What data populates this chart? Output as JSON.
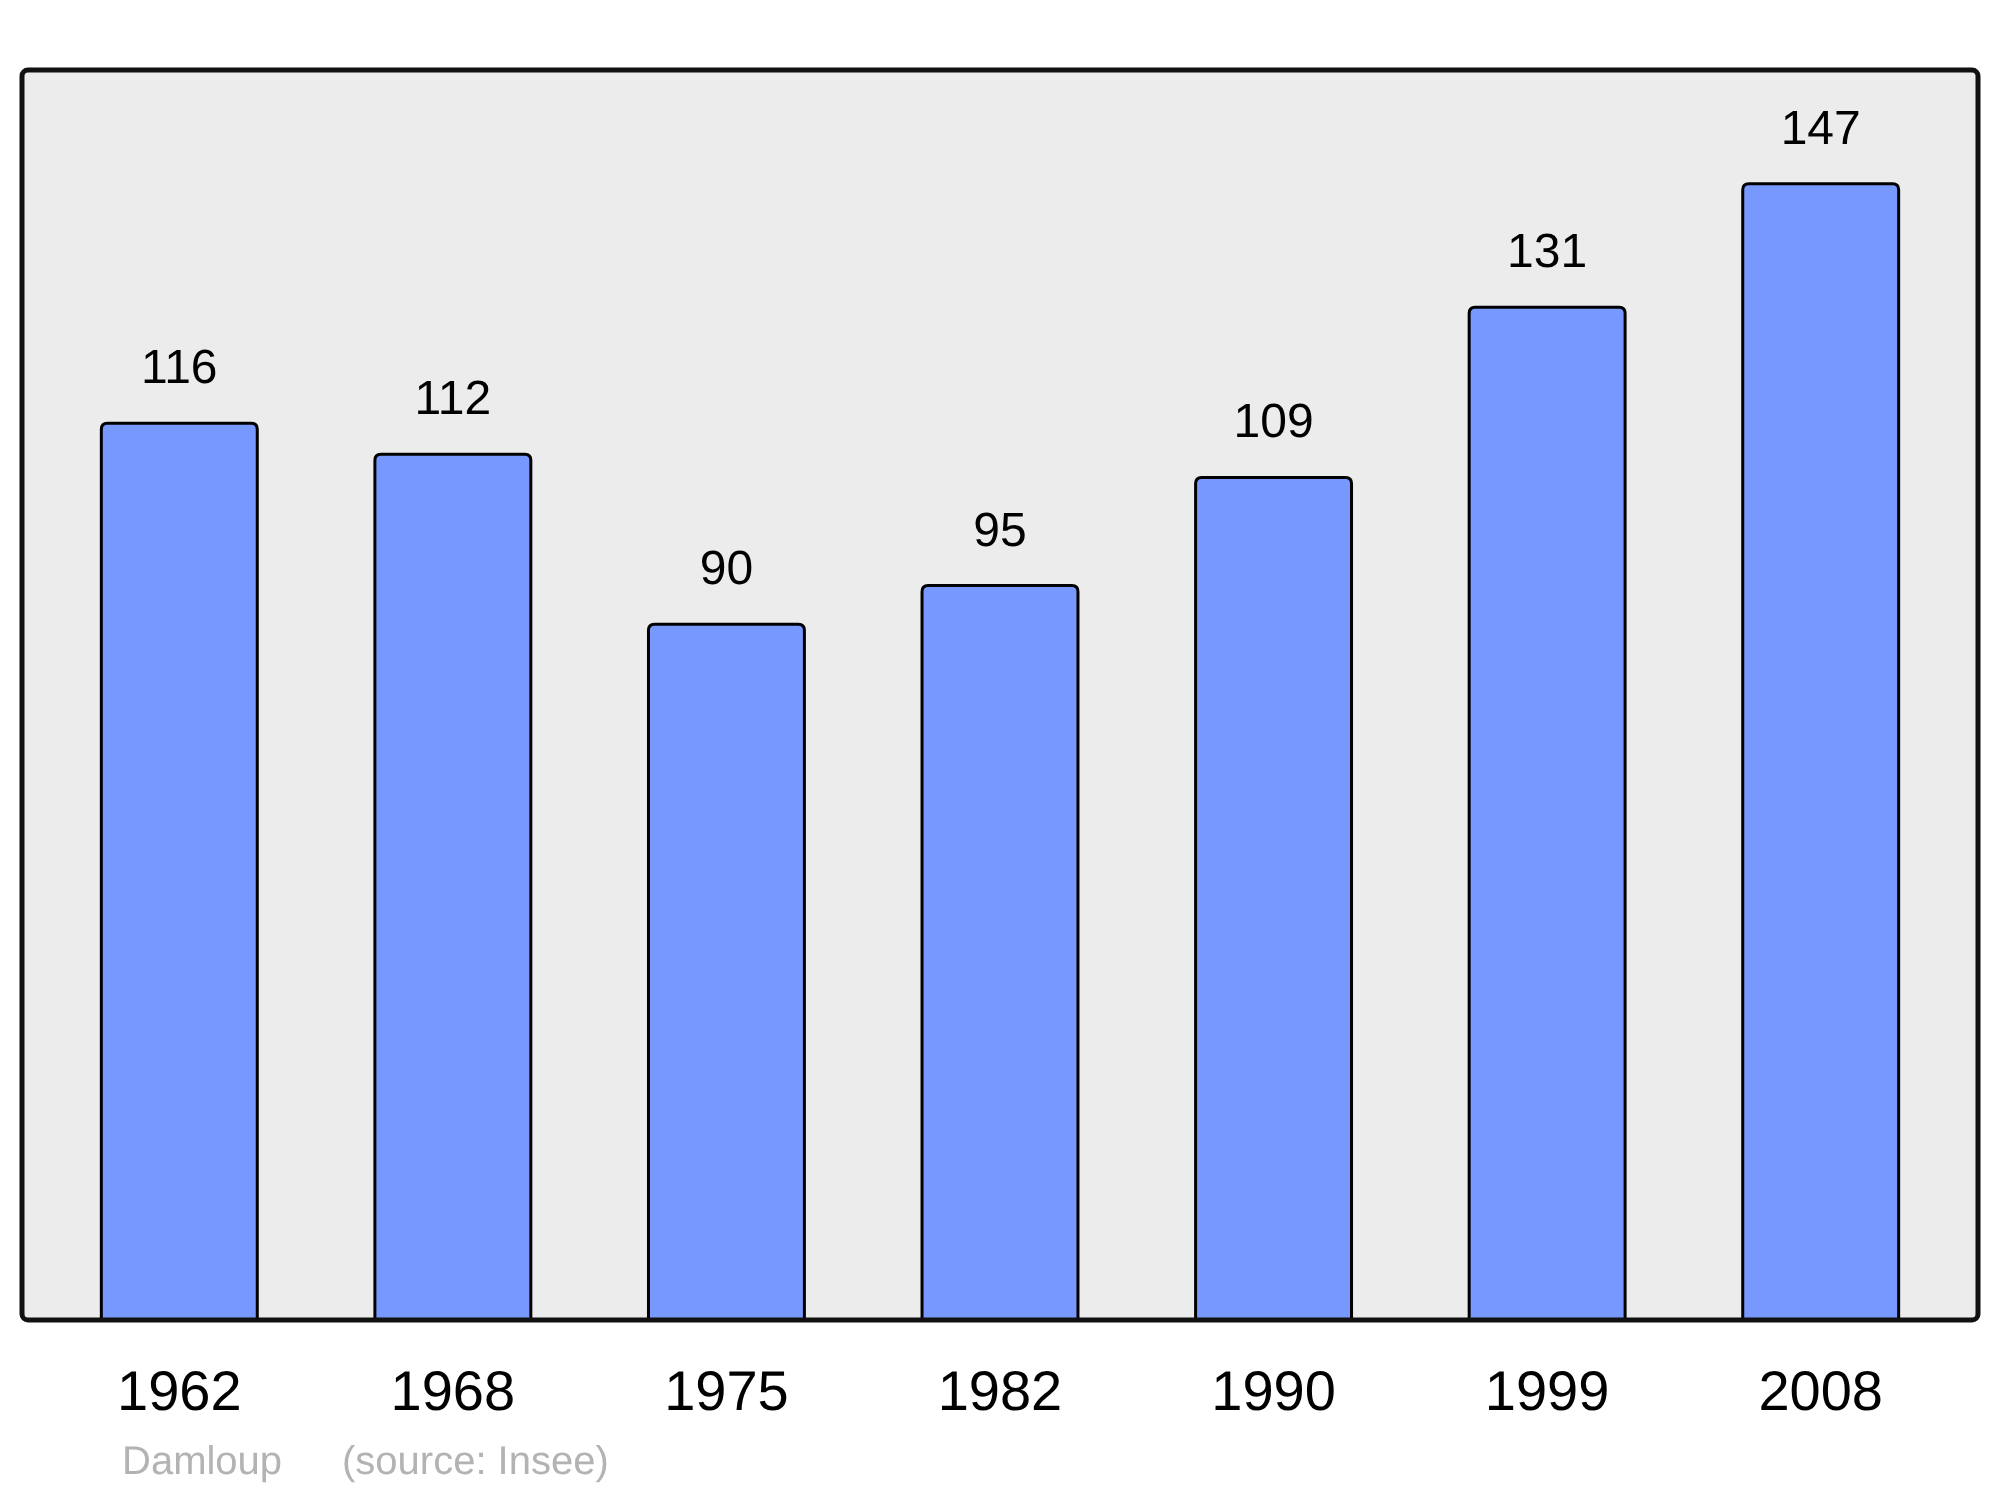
{
  "chart_data": {
    "type": "bar",
    "categories": [
      "1962",
      "1968",
      "1975",
      "1982",
      "1990",
      "1999",
      "2008"
    ],
    "values": [
      116,
      112,
      90,
      95,
      109,
      131,
      147
    ],
    "color": "#7799ff",
    "data_labels": true,
    "annotations": [
      "Damloup",
      "(source: Insee)"
    ]
  }
}
